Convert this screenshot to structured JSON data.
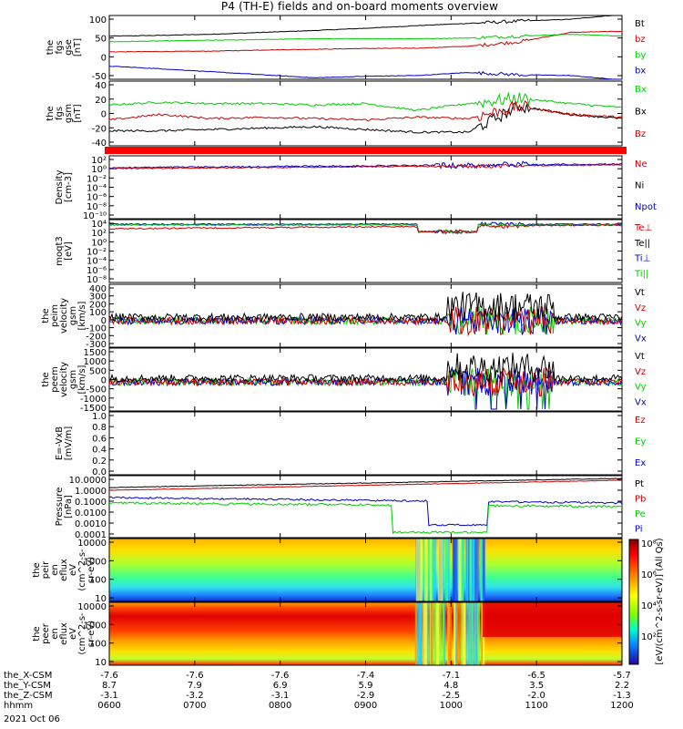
{
  "chart_data": {
    "type": "line",
    "title": "P4 (TH-E) fields and on-board moments overview",
    "date_label": "2021 Oct 06",
    "panels": [
      {
        "id": "fgs-gse",
        "ylabel": [
          "the",
          "fgs",
          "gse",
          "[nT]"
        ],
        "ylim": [
          -70,
          100
        ],
        "yticks": [
          "100",
          "50",
          "0",
          "-50"
        ],
        "legend": [
          {
            "name": "Bt",
            "color": "#000000"
          },
          {
            "name": "bz",
            "color": "#cc0000"
          },
          {
            "name": "by",
            "color": "#00cc00"
          },
          {
            "name": "bx",
            "color": "#0000cc"
          }
        ],
        "series": [
          {
            "name": "Bt",
            "color": "#000000",
            "values": [
              45,
              47,
              50,
              55,
              60,
              66,
              73,
              79,
              85,
              90,
              103
            ]
          },
          {
            "name": "bz",
            "color": "#cc0000",
            "values": [
              3,
              4,
              5,
              8,
              10,
              12,
              13,
              18,
              30,
              55,
              58
            ]
          },
          {
            "name": "by",
            "color": "#00cc00",
            "values": [
              30,
              32,
              34,
              36,
              38,
              38,
              38,
              40,
              45,
              50,
              45
            ]
          },
          {
            "name": "bx",
            "color": "#0000cc",
            "values": [
              -35,
              -42,
              -50,
              -58,
              -66,
              -62,
              -60,
              -52,
              -58,
              -60,
              -72
            ]
          }
        ]
      },
      {
        "id": "fgs-gsm",
        "ylabel": [
          "the",
          "fgs",
          "gsm",
          "[nT]"
        ],
        "ylim": [
          -50,
          45
        ],
        "yticks": [
          "40",
          "20",
          "0",
          "-20",
          "-40"
        ],
        "legend": [
          {
            "name": "Bx",
            "color": "#00cc00"
          },
          {
            "name": "Bx",
            "color": "#000000"
          },
          {
            "name": "Bz",
            "color": "#cc0000"
          }
        ],
        "series": [
          {
            "name": "green",
            "color": "#00cc00",
            "values": [
              10,
              14,
              12,
              12,
              10,
              12,
              2,
              12,
              20,
              12,
              6
            ]
          },
          {
            "name": "black",
            "color": "#000000",
            "values": [
              -28,
              -28,
              -26,
              -24,
              -22,
              -26,
              -30,
              -30,
              8,
              -4,
              -10
            ]
          },
          {
            "name": "red",
            "color": "#cc0000",
            "values": [
              -12,
              -4,
              -10,
              -8,
              -10,
              -12,
              -8,
              -10,
              8,
              -4,
              -8
            ]
          }
        ]
      },
      {
        "id": "density",
        "ylabel": [
          "Density",
          "[cm-3]"
        ],
        "yticks": [
          "10²",
          "10⁰",
          "10⁻²",
          "10⁻⁴",
          "10⁻⁶",
          "10⁻⁸",
          "10⁻¹⁰"
        ],
        "legend": [
          {
            "name": "Ne",
            "color": "#cc0000"
          },
          {
            "name": "Ni",
            "color": "#000000"
          },
          {
            "name": "Npot",
            "color": "#0000cc"
          }
        ]
      },
      {
        "id": "temperature",
        "ylabel": [
          "moqt3",
          "[eV]"
        ],
        "yticks": [
          "10⁴",
          "10²",
          "10⁰",
          "10⁻²",
          "10⁻⁴",
          "10⁻⁶",
          "10⁻⁸"
        ],
        "legend": [
          {
            "name": "Te⊥",
            "color": "#cc0000"
          },
          {
            "name": "Te||",
            "color": "#000000"
          },
          {
            "name": "Ti⊥",
            "color": "#0000cc"
          },
          {
            "name": "Ti||",
            "color": "#00cc00"
          }
        ]
      },
      {
        "id": "peim-velocity",
        "ylabel": [
          "the",
          "peim",
          "velocity",
          "gsm",
          "[km/s]"
        ],
        "ylim": [
          -300,
          400
        ],
        "yticks": [
          "400",
          "300",
          "200",
          "100",
          "0",
          "-100",
          "-200",
          "-300"
        ],
        "legend": [
          {
            "name": "Vt",
            "color": "#000000"
          },
          {
            "name": "Vz",
            "color": "#cc0000"
          },
          {
            "name": "Vy",
            "color": "#00cc00"
          },
          {
            "name": "Vx",
            "color": "#0000cc"
          }
        ]
      },
      {
        "id": "peem-velocity",
        "ylabel": [
          "the",
          "peem",
          "velocity",
          "gsm",
          "[km/s]"
        ],
        "ylim": [
          -1500,
          1500
        ],
        "yticks": [
          "1500",
          "1000",
          "500",
          "0",
          "-500",
          "-1000",
          "-1500"
        ],
        "legend": [
          {
            "name": "Vt",
            "color": "#000000"
          },
          {
            "name": "Vz",
            "color": "#cc0000"
          },
          {
            "name": "Vy",
            "color": "#00cc00"
          },
          {
            "name": "Vx",
            "color": "#0000cc"
          }
        ]
      },
      {
        "id": "efield",
        "ylabel": [
          "E=-VxB",
          "[mV/m]"
        ],
        "ylim": [
          0,
          1
        ],
        "yticks": [
          "1.0",
          "0.8",
          "0.6",
          "0.4",
          "0.2",
          "0.0"
        ],
        "legend": [
          {
            "name": "Ez",
            "color": "#cc0000"
          },
          {
            "name": "Ey",
            "color": "#00cc00"
          },
          {
            "name": "Ex",
            "color": "#0000cc"
          }
        ]
      },
      {
        "id": "pressure",
        "ylabel": [
          "Pressure",
          "[nPa]"
        ],
        "yticks": [
          "10.0000",
          "1.0000",
          "0.1000",
          "0.0100",
          "0.0010",
          "0.0001"
        ],
        "legend": [
          {
            "name": "Pt",
            "color": "#000000"
          },
          {
            "name": "Pb",
            "color": "#cc0000"
          },
          {
            "name": "Pe",
            "color": "#00cc00"
          },
          {
            "name": "Pi",
            "color": "#0000cc"
          }
        ]
      },
      {
        "id": "peir-spectrogram",
        "ylabel": [
          "the",
          "peir",
          "en",
          "eflux",
          "eV",
          "(cm^2-s-",
          "sr-eV)"
        ],
        "yticks": [
          "10000",
          "1000",
          "100",
          "10"
        ]
      },
      {
        "id": "peer-spectrogram",
        "ylabel": [
          "the",
          "peer",
          "en",
          "eflux",
          "eV",
          "(cm^2-s-",
          "sr-eV)"
        ],
        "yticks": [
          "10000",
          "1000",
          "100",
          "10"
        ]
      }
    ],
    "colorbar": {
      "ticks": [
        "10⁸",
        "10⁶",
        "10⁴",
        "10²"
      ],
      "label": "[eV/(cm^2-s-sr-eV)] (All Qs)"
    },
    "x_axis": {
      "rows": [
        {
          "label": "the_X-CSM",
          "values": [
            "-7.6",
            "-7.6",
            "-7.6",
            "-7.4",
            "-7.1",
            "-6.5",
            "-5.7"
          ]
        },
        {
          "label": "the_Y-CSM",
          "values": [
            "8.7",
            "7.9",
            "6.9",
            "5.9",
            "4.8",
            "3.5",
            "2.2"
          ]
        },
        {
          "label": "the_Z-CSM",
          "values": [
            "-3.1",
            "-3.2",
            "-3.1",
            "-2.9",
            "-2.5",
            "-2.0",
            "-1.3"
          ]
        },
        {
          "label": "hhmm",
          "values": [
            "0600",
            "0700",
            "0800",
            "0900",
            "1000",
            "1100",
            "1200"
          ]
        }
      ]
    }
  }
}
